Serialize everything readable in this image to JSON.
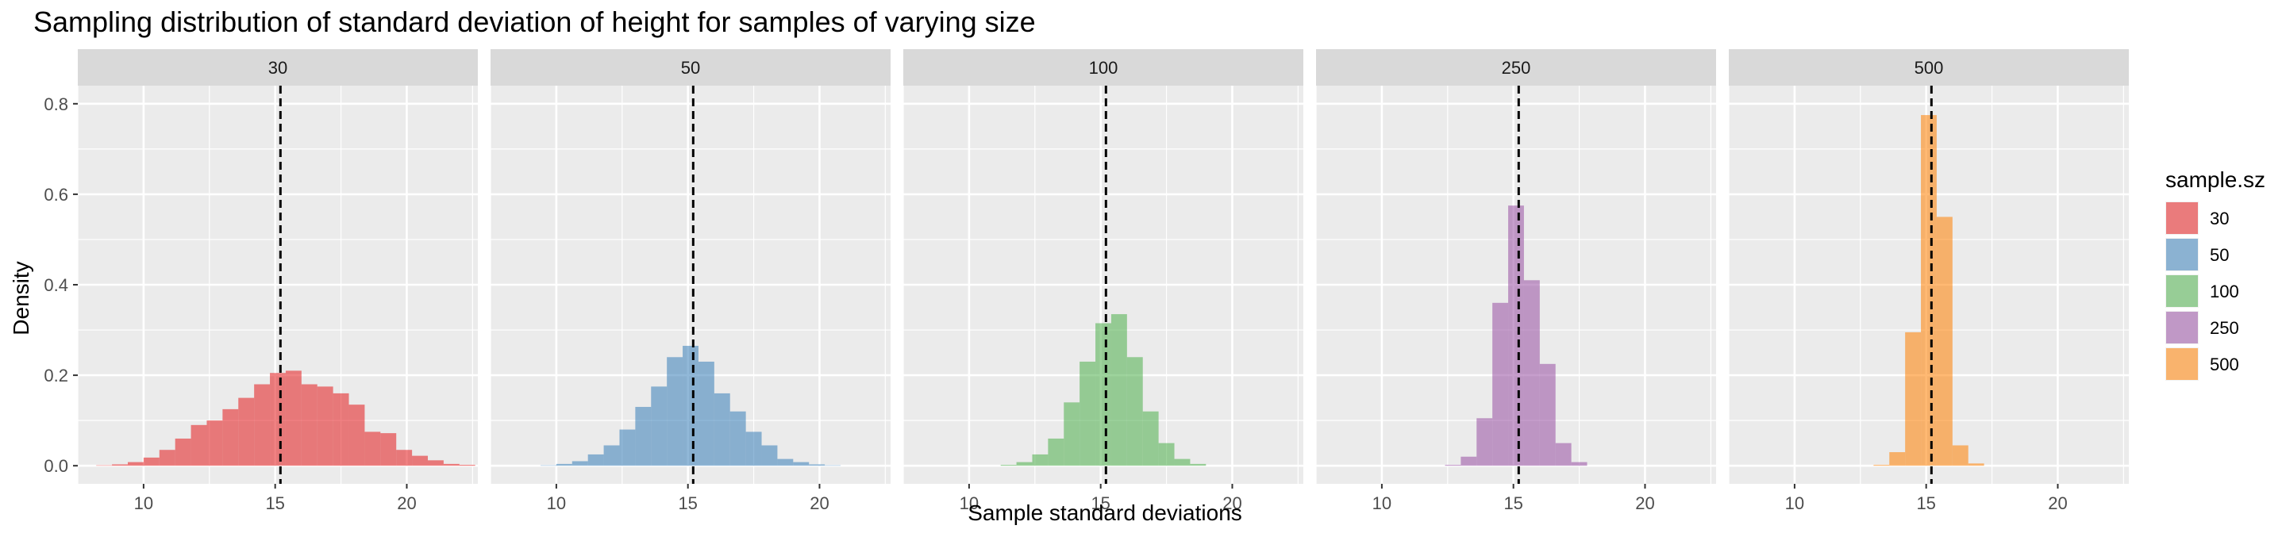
{
  "chart_data": {
    "type": "histogram",
    "title": "Sampling distribution of standard deviation of height for samples of varying size",
    "xlabel": "Sample standard deviations",
    "ylabel": "Density",
    "xlim": [
      7.5,
      22.7
    ],
    "ylim": [
      -0.04,
      0.84
    ],
    "x_ticks": [
      10,
      15,
      20
    ],
    "x_tick_labels": [
      "10",
      "15",
      "20"
    ],
    "y_ticks": [
      0,
      0.2,
      0.4,
      0.6,
      0.8
    ],
    "y_tick_labels": [
      "0.0",
      "0.2",
      "0.4",
      "0.6",
      "0.8"
    ],
    "reference_line": {
      "x": 15.2,
      "style": "dashed",
      "color": "#000000"
    },
    "grid": true,
    "legend": {
      "title": "sample.sz",
      "position": "right"
    },
    "bin_width": 0.6,
    "panels": [
      {
        "label": "30",
        "color": "#e41a1c",
        "bins_start": [
          8.2,
          8.8,
          9.4,
          10.0,
          10.6,
          11.2,
          11.8,
          12.4,
          13.0,
          13.6,
          14.2,
          14.8,
          15.4,
          16.0,
          16.6,
          17.2,
          17.8,
          18.4,
          19.0,
          19.6,
          20.2,
          20.8,
          21.4,
          22.0
        ],
        "density": [
          0.001,
          0.003,
          0.008,
          0.018,
          0.035,
          0.06,
          0.09,
          0.1,
          0.125,
          0.15,
          0.18,
          0.205,
          0.21,
          0.18,
          0.175,
          0.16,
          0.135,
          0.075,
          0.072,
          0.035,
          0.022,
          0.012,
          0.004,
          0.002
        ]
      },
      {
        "label": "50",
        "color": "#377eb8",
        "bins_start": [
          9.4,
          10.0,
          10.6,
          11.2,
          11.8,
          12.4,
          13.0,
          13.6,
          14.2,
          14.8,
          15.4,
          16.0,
          16.6,
          17.2,
          17.8,
          18.4,
          19.0,
          19.6,
          20.2
        ],
        "density": [
          0.001,
          0.004,
          0.01,
          0.025,
          0.045,
          0.08,
          0.13,
          0.175,
          0.24,
          0.265,
          0.23,
          0.16,
          0.12,
          0.075,
          0.045,
          0.015,
          0.008,
          0.003,
          0.001
        ]
      },
      {
        "label": "100",
        "color": "#4daf4a",
        "bins_start": [
          11.2,
          11.8,
          12.4,
          13.0,
          13.6,
          14.2,
          14.8,
          15.4,
          16.0,
          16.6,
          17.2,
          17.8,
          18.4
        ],
        "density": [
          0.002,
          0.008,
          0.025,
          0.06,
          0.14,
          0.23,
          0.315,
          0.335,
          0.24,
          0.12,
          0.05,
          0.015,
          0.004
        ]
      },
      {
        "label": "250",
        "color": "#984ea3",
        "bins_start": [
          12.4,
          13.0,
          13.6,
          14.2,
          14.8,
          15.4,
          16.0,
          16.6,
          17.2
        ],
        "density": [
          0.002,
          0.02,
          0.105,
          0.36,
          0.575,
          0.41,
          0.225,
          0.05,
          0.008
        ]
      },
      {
        "label": "500",
        "color": "#ff7f00",
        "bins_start": [
          13.0,
          13.6,
          14.2,
          14.8,
          15.4,
          16.0,
          16.6
        ],
        "density": [
          0.002,
          0.03,
          0.295,
          0.775,
          0.55,
          0.045,
          0.005
        ]
      }
    ]
  }
}
